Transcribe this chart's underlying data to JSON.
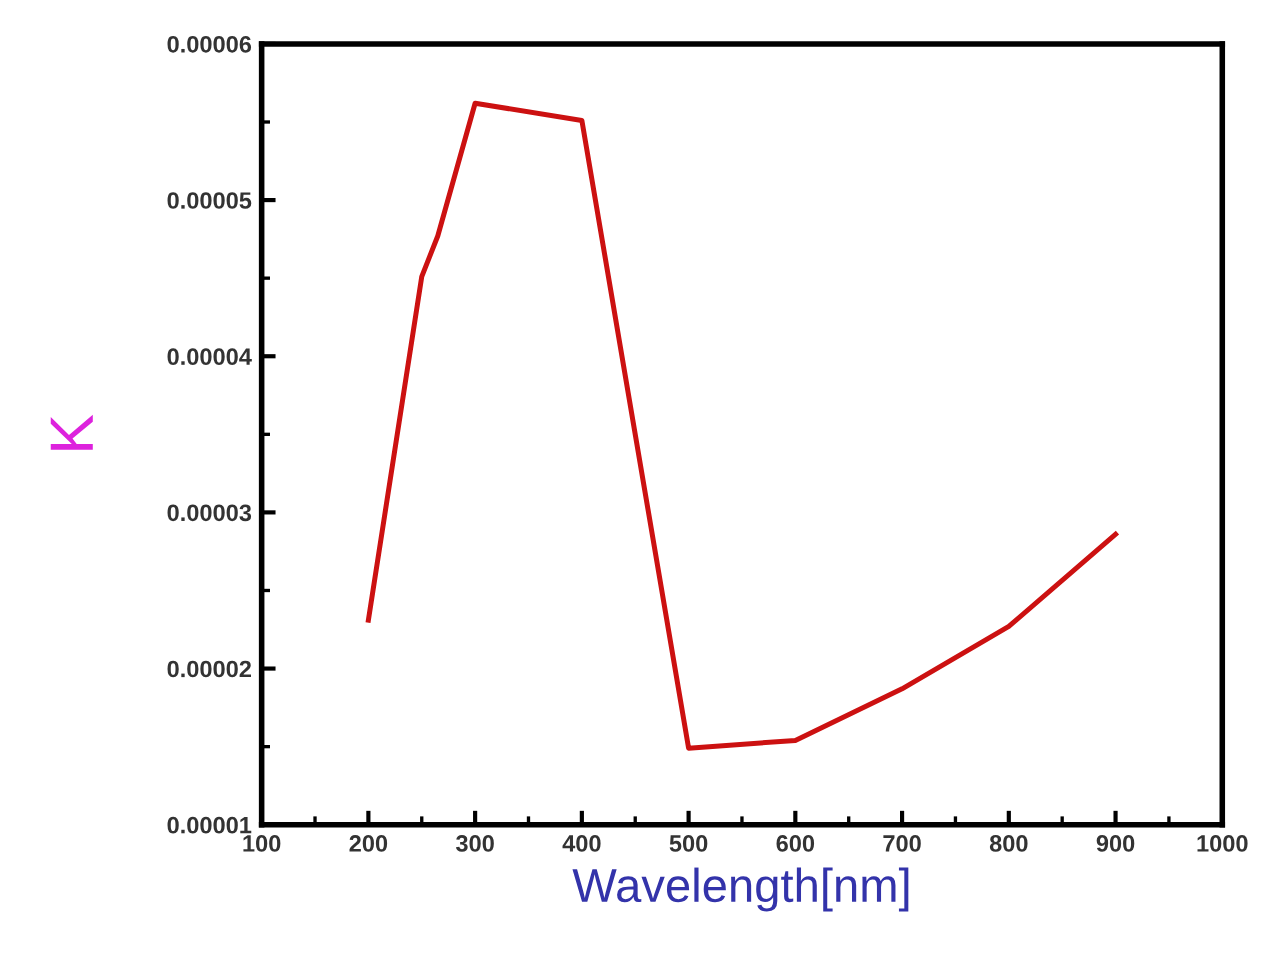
{
  "chart_data": {
    "type": "line",
    "xlabel": "Wavelength[nm]",
    "ylabel": "K",
    "x": [
      200,
      250,
      265,
      300,
      400,
      500,
      600,
      700,
      800,
      900
    ],
    "series": [
      {
        "color": "#cc1111",
        "values": [
          2.31e-05,
          4.51e-05,
          4.77e-05,
          5.62e-05,
          5.51e-05,
          1.49e-05,
          1.54e-05,
          1.87e-05,
          2.27e-05,
          2.86e-05
        ]
      }
    ],
    "xlim": [
      100,
      1000
    ],
    "xticks": [
      100,
      200,
      300,
      400,
      500,
      600,
      700,
      800,
      900,
      1000
    ],
    "ylim": [
      1e-05,
      6e-05
    ],
    "yticks": [
      {
        "value": 1e-05,
        "label": "0.00001"
      },
      {
        "value": 2e-05,
        "label": "0.00002"
      },
      {
        "value": 3e-05,
        "label": "0.00003"
      },
      {
        "value": 4e-05,
        "label": "0.00004"
      },
      {
        "value": 5e-05,
        "label": "0.00005"
      },
      {
        "value": 6e-05,
        "label": "0.00006"
      }
    ],
    "grid": false,
    "marker": "none",
    "line_style": "solid"
  }
}
